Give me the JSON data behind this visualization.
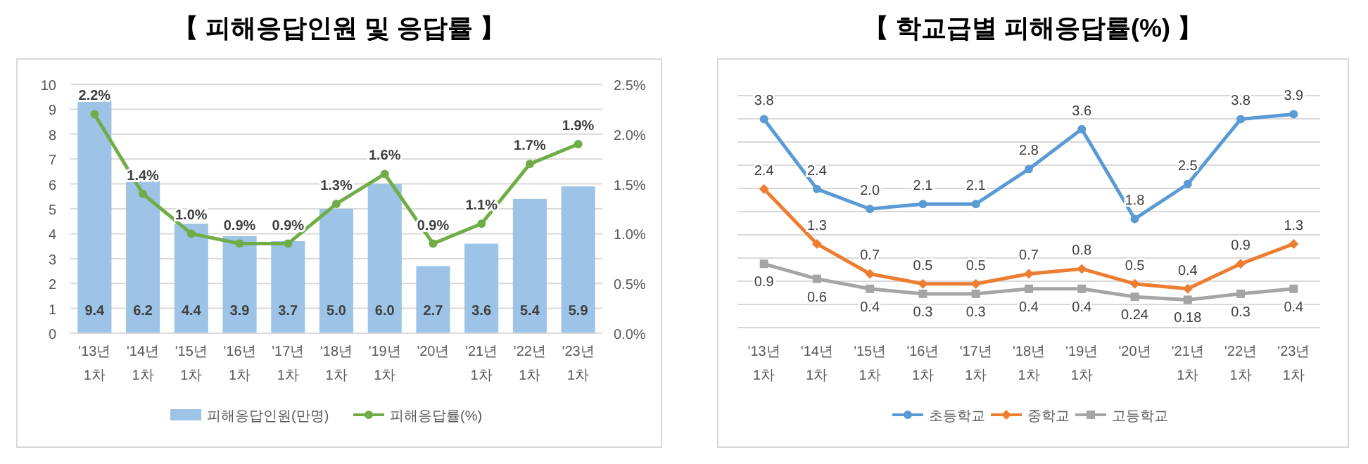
{
  "chart_data": [
    {
      "type": "bar",
      "title": "【 피해응답인원 및 응답률 】",
      "categories": [
        "'13년\n1차",
        "'14년\n1차",
        "'15년\n1차",
        "'16년\n1차",
        "'17년\n1차",
        "'18년\n1차",
        "'19년\n1차",
        "'20년",
        "'21년\n1차",
        "'22년\n1차",
        "'23년\n1차"
      ],
      "series": [
        {
          "name": "피해응답인원(만명)",
          "type": "bar",
          "color": "#9dc3e6",
          "values": [
            9.4,
            6.2,
            4.4,
            3.9,
            3.7,
            5.0,
            6.0,
            2.7,
            3.6,
            5.4,
            5.9
          ],
          "value_labels": [
            "9.4",
            "6.2",
            "4.4",
            "3.9",
            "3.7",
            "5.0",
            "6.0",
            "2.7",
            "3.6",
            "5.4",
            "5.9"
          ]
        },
        {
          "name": "피해응답률(%)",
          "type": "line",
          "axis": "y2",
          "color": "#70ad47",
          "marker": "circle",
          "values": [
            2.2,
            1.4,
            1.0,
            0.9,
            0.9,
            1.3,
            1.6,
            0.9,
            1.1,
            1.7,
            1.9
          ],
          "value_labels": [
            "2.2%",
            "1.4%",
            "1.0%",
            "0.9%",
            "0.9%",
            "1.3%",
            "1.6%",
            "0.9%",
            "1.1%",
            "1.7%",
            "1.9%"
          ]
        }
      ],
      "ylim": [
        0,
        10
      ],
      "yticks": [
        0,
        1,
        2,
        3,
        4,
        5,
        6,
        7,
        8,
        9,
        10
      ],
      "y2lim": [
        0,
        2.5
      ],
      "y2ticks": [
        {
          "value": 0,
          "label": "0.0%"
        },
        {
          "value": 0.5,
          "label": "0.5%"
        },
        {
          "value": 1.0,
          "label": "1.0%"
        },
        {
          "value": 1.5,
          "label": "1.5%"
        },
        {
          "value": 2.0,
          "label": "2.0%"
        },
        {
          "value": 2.5,
          "label": "2.5%"
        }
      ],
      "grid": "y",
      "legend": "bottom"
    },
    {
      "type": "line",
      "title": "【 학교급별 피해응답률(%) 】",
      "categories": [
        "'13년\n1차",
        "'14년\n1차",
        "'15년\n1차",
        "'16년\n1차",
        "'17년\n1차",
        "'18년\n1차",
        "'19년\n1차",
        "'20년",
        "'21년\n1차",
        "'22년\n1차",
        "'23년\n1차"
      ],
      "series": [
        {
          "name": "초등학교",
          "color": "#5b9bd5",
          "marker": "circle",
          "values": [
            3.8,
            2.4,
            2.0,
            2.1,
            2.1,
            2.8,
            3.6,
            1.8,
            2.5,
            3.8,
            3.9
          ],
          "value_labels": [
            "3.8",
            "2.4",
            "2.0",
            "2.1",
            "2.1",
            "2.8",
            "3.6",
            "1.8",
            "2.5",
            "3.8",
            "3.9"
          ]
        },
        {
          "name": "중학교",
          "color": "#ed7d31",
          "marker": "diamond",
          "values": [
            2.4,
            1.3,
            0.7,
            0.5,
            0.5,
            0.7,
            0.8,
            0.5,
            0.4,
            0.9,
            1.3
          ]
        },
        {
          "name": "고등학교",
          "color": "#a5a5a5",
          "marker": "square",
          "values": [
            0.9,
            0.6,
            0.4,
            0.3,
            0.3,
            0.4,
            0.4,
            0.24,
            0.18,
            0.3,
            0.4
          ]
        }
      ],
      "data_labels": true,
      "grid": "y",
      "legend": "bottom"
    }
  ]
}
